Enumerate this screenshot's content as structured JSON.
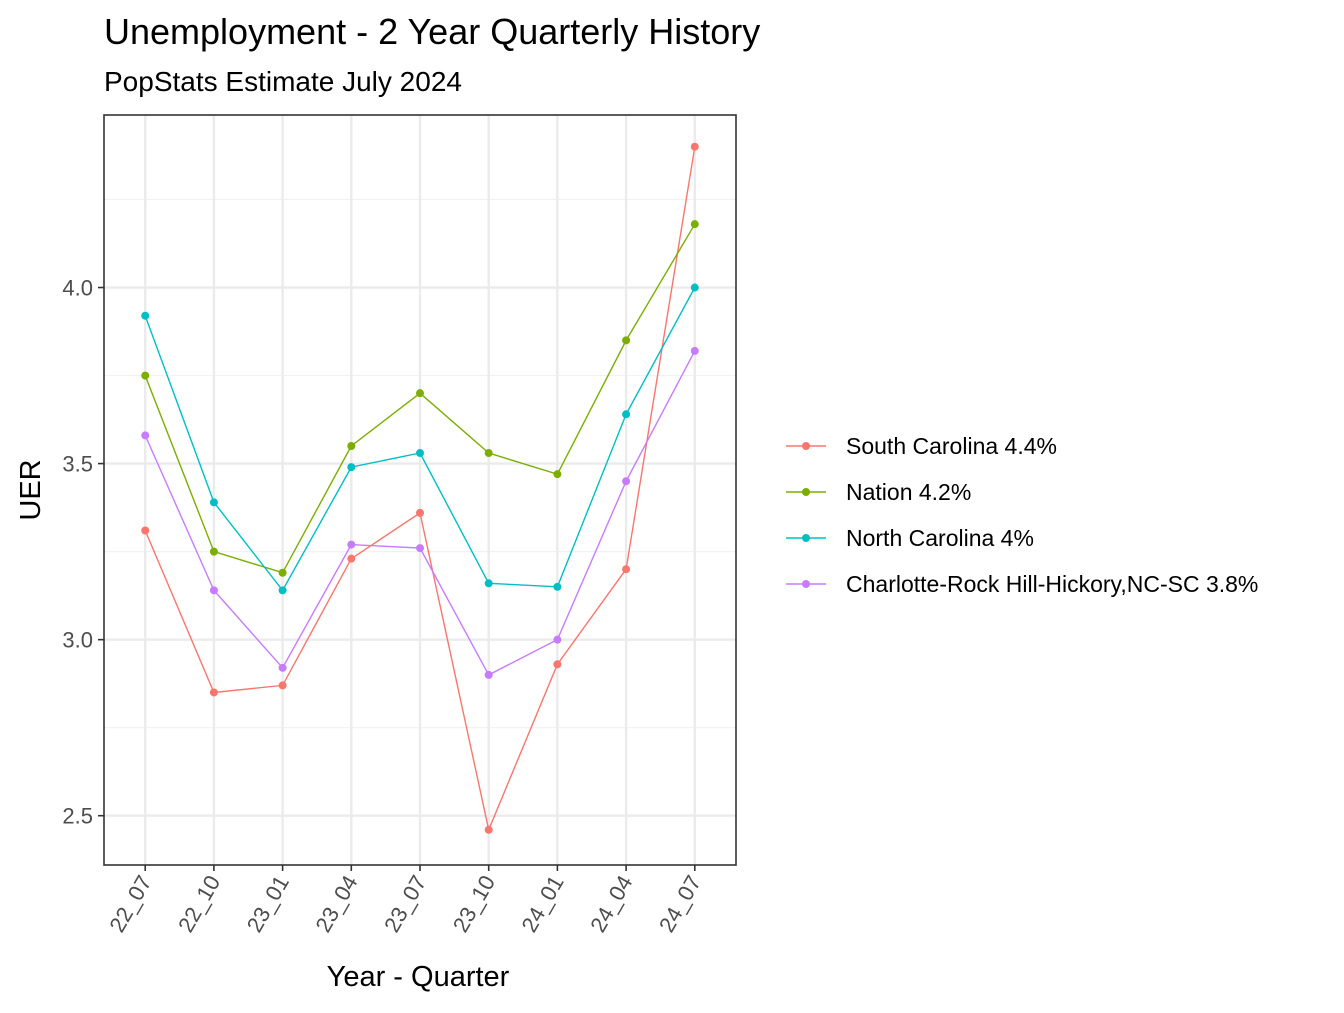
{
  "chart_data": {
    "type": "line",
    "title": "Unemployment - 2 Year Quarterly History",
    "subtitle": "PopStats Estimate July 2024",
    "xlabel": "Year - Quarter",
    "ylabel": "UER",
    "categories": [
      "22_07",
      "22_10",
      "23_01",
      "23_04",
      "23_07",
      "23_10",
      "24_01",
      "24_04",
      "24_07"
    ],
    "ylim": [
      2.36,
      4.49
    ],
    "yticks": [
      2.5,
      3.0,
      3.5,
      4.0
    ],
    "ytick_labels": [
      "2.5",
      "3.0",
      "3.5",
      "4.0"
    ],
    "grid": true,
    "legend_position": "right",
    "series": [
      {
        "name": "South Carolina 4.4%",
        "color": "#F8766D",
        "values": [
          3.31,
          2.85,
          2.87,
          3.23,
          3.36,
          2.46,
          2.93,
          3.2,
          4.4
        ]
      },
      {
        "name": "Nation 4.2%",
        "color": "#7CAE00",
        "values": [
          3.75,
          3.25,
          3.19,
          3.55,
          3.7,
          3.53,
          3.47,
          3.85,
          4.18
        ]
      },
      {
        "name": "North Carolina 4%",
        "color": "#00BFC4",
        "values": [
          3.92,
          3.39,
          3.14,
          3.49,
          3.53,
          3.16,
          3.15,
          3.64,
          4.0
        ]
      },
      {
        "name": "Charlotte-Rock Hill-Hickory,NC-SC 3.8%",
        "color": "#C77CFF",
        "values": [
          3.58,
          3.14,
          2.92,
          3.27,
          3.26,
          2.9,
          3.0,
          3.45,
          3.82
        ]
      }
    ]
  }
}
